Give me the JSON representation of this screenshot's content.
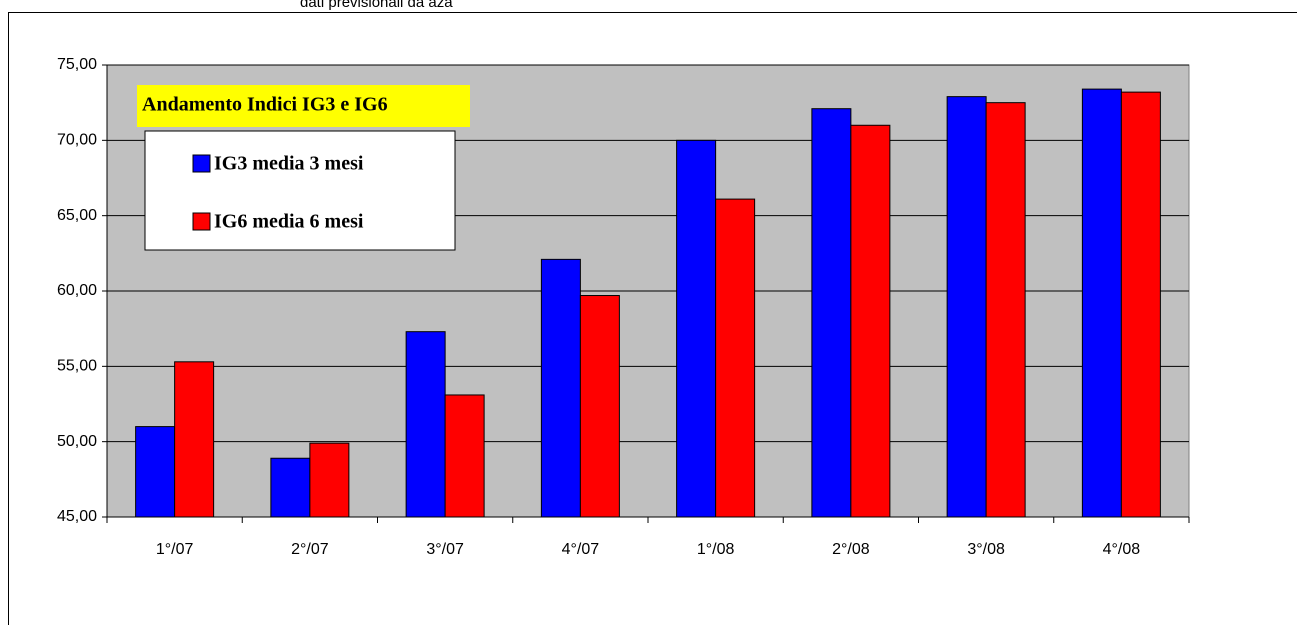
{
  "chart_data": {
    "type": "bar",
    "subtitle": "dati previsionali da aza",
    "title": "Andamento Indici IG3 e IG6",
    "categories": [
      "1°/07",
      "2°/07",
      "3°/07",
      "4°/07",
      "1°/08",
      "2°/08",
      "3°/08",
      "4°/08"
    ],
    "series": [
      {
        "name": "IG3 media 3 mesi",
        "color": "#0000ff",
        "values": [
          51.0,
          48.9,
          57.3,
          62.1,
          70.0,
          72.1,
          72.9,
          73.4
        ]
      },
      {
        "name": "IG6 media 6 mesi",
        "color": "#ff0000",
        "values": [
          55.3,
          49.9,
          53.1,
          59.7,
          66.1,
          71.0,
          72.5,
          73.2
        ]
      }
    ],
    "ylim": [
      45,
      75
    ],
    "yticks": [
      {
        "value": 45,
        "label": "45,00"
      },
      {
        "value": 50,
        "label": "50,00"
      },
      {
        "value": 55,
        "label": "55,00"
      },
      {
        "value": 60,
        "label": "60,00"
      },
      {
        "value": 65,
        "label": "65,00"
      },
      {
        "value": 70,
        "label": "70,00"
      },
      {
        "value": 75,
        "label": "75,00"
      }
    ],
    "grid": true,
    "plot_background": "#c0c0c0"
  }
}
